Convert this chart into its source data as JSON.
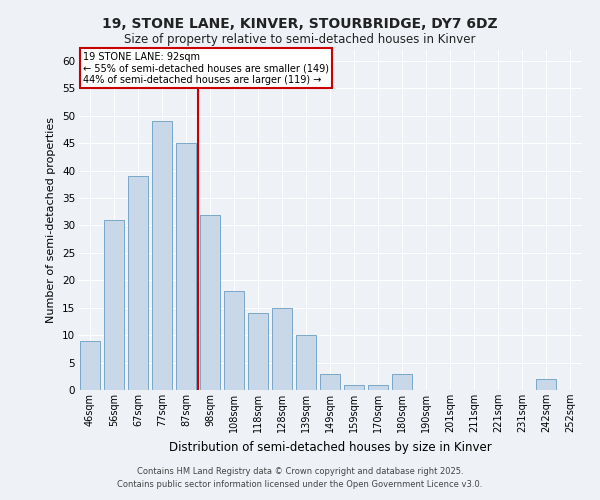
{
  "title": "19, STONE LANE, KINVER, STOURBRIDGE, DY7 6DZ",
  "subtitle": "Size of property relative to semi-detached houses in Kinver",
  "xlabel": "Distribution of semi-detached houses by size in Kinver",
  "ylabel": "Number of semi-detached properties",
  "bar_color": "#c8d8e8",
  "bar_edge_color": "#7aa8c8",
  "background_color": "#eef2f7",
  "categories": [
    "46sqm",
    "56sqm",
    "67sqm",
    "77sqm",
    "87sqm",
    "98sqm",
    "108sqm",
    "118sqm",
    "128sqm",
    "139sqm",
    "149sqm",
    "159sqm",
    "170sqm",
    "180sqm",
    "190sqm",
    "201sqm",
    "211sqm",
    "221sqm",
    "231sqm",
    "242sqm",
    "252sqm"
  ],
  "values": [
    9,
    31,
    39,
    49,
    45,
    32,
    18,
    14,
    15,
    10,
    3,
    1,
    1,
    3,
    0,
    0,
    0,
    0,
    0,
    2,
    0
  ],
  "ylim": [
    0,
    62
  ],
  "yticks": [
    0,
    5,
    10,
    15,
    20,
    25,
    30,
    35,
    40,
    45,
    50,
    55,
    60
  ],
  "property_line_x": 4.5,
  "property_label": "19 STONE LANE: 92sqm",
  "annotation_line1": "← 55% of semi-detached houses are smaller (149)",
  "annotation_line2": "44% of semi-detached houses are larger (119) →",
  "vline_color": "#cc0000",
  "box_edge_color": "#cc0000",
  "title_fontsize": 10,
  "subtitle_fontsize": 8.5,
  "ylabel_fontsize": 8,
  "xlabel_fontsize": 8.5,
  "footer_line1": "Contains HM Land Registry data © Crown copyright and database right 2025.",
  "footer_line2": "Contains public sector information licensed under the Open Government Licence v3.0."
}
